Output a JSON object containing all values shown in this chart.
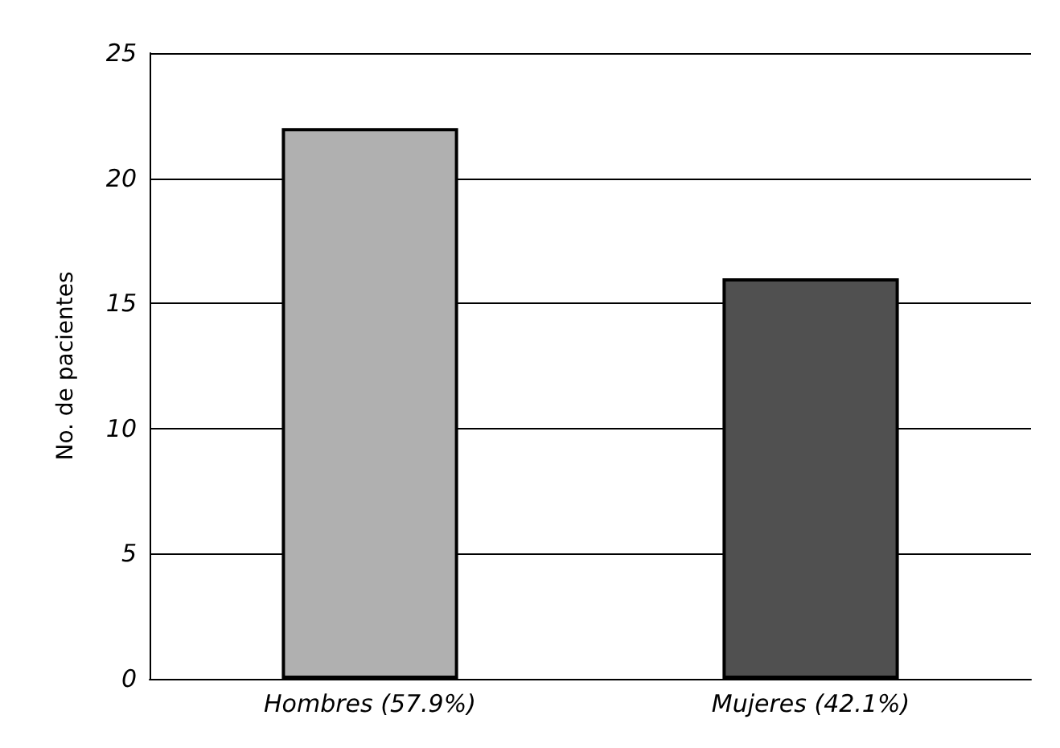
{
  "chart_data": {
    "type": "bar",
    "ylabel": "No. de pacientes",
    "categories": [
      "Hombres (57.9%)",
      "Mujeres (42.1%)"
    ],
    "values": [
      22,
      16
    ],
    "colors": [
      "#b0b0b0",
      "#505050"
    ],
    "ylim": [
      0,
      25
    ],
    "yticks": [
      0,
      5,
      10,
      15,
      20,
      25
    ],
    "grid": "y"
  }
}
